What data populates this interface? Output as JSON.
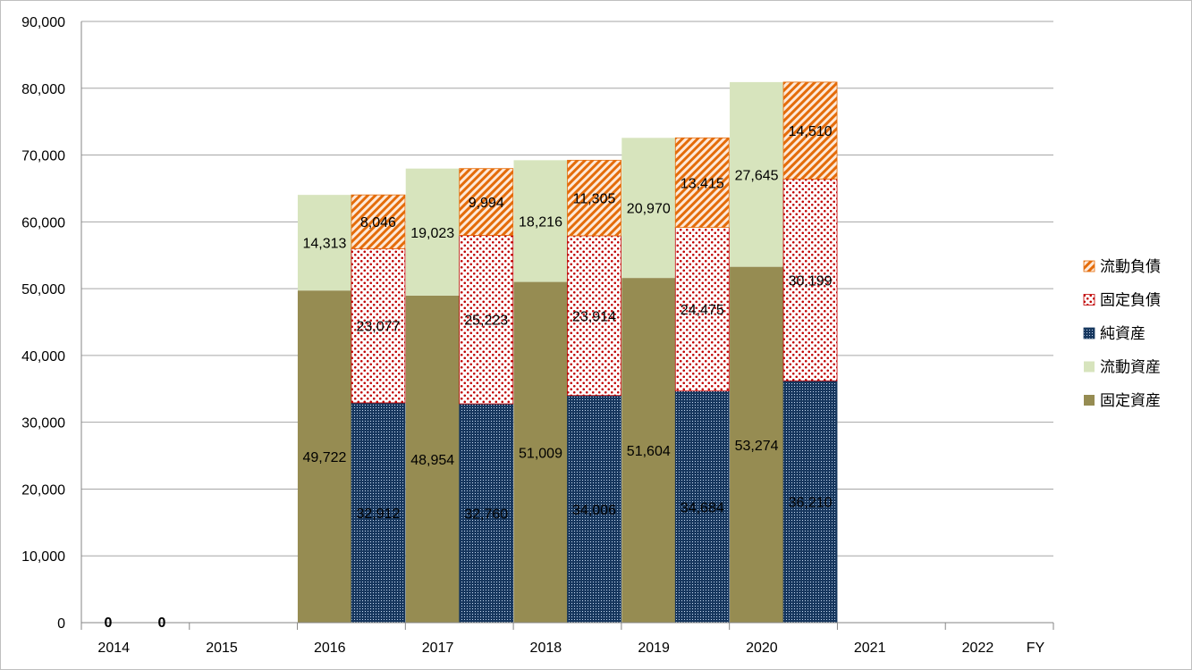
{
  "chart_data": {
    "type": "bar",
    "stacked": true,
    "grouped_pairs": true,
    "x_axis_label": "FY",
    "x_tick_labels": [
      "2014",
      "2015",
      "2016",
      "2017",
      "2018",
      "2019",
      "2020",
      "2021",
      "2022"
    ],
    "ylim": [
      0,
      90000
    ],
    "y_ticks": [
      "0",
      "10,000",
      "20,000",
      "30,000",
      "40,000",
      "50,000",
      "60,000",
      "70,000",
      "80,000",
      "90,000"
    ],
    "grid": true,
    "legend_position": "right",
    "zero_labels": [
      "0",
      "0"
    ],
    "years": [
      2016,
      2017,
      2018,
      2019,
      2020
    ],
    "assets_stack": [
      {
        "name": "固定資産",
        "color": "#968c52",
        "values": [
          49722,
          48954,
          51009,
          51604,
          53274
        ],
        "labels": [
          "49,722",
          "48,954",
          "51,009",
          "51,604",
          "53,274"
        ]
      },
      {
        "name": "流動資産",
        "color": "#d7e4bd",
        "values": [
          14313,
          19023,
          18216,
          20970,
          27645
        ],
        "labels": [
          "14,313",
          "19,023",
          "18,216",
          "20,970",
          "27,645"
        ]
      }
    ],
    "liabilities_stack": [
      {
        "name": "純資産",
        "color": "#17375e",
        "values": [
          32912,
          32760,
          34006,
          34684,
          36210
        ],
        "labels": [
          "32,912",
          "32,760",
          "34,006",
          "34,684",
          "36,210"
        ]
      },
      {
        "name": "固定負債",
        "color": "#c00000",
        "values": [
          23077,
          25223,
          23914,
          24475,
          30199
        ],
        "labels": [
          "23,077",
          "25,223",
          "23,914",
          "24,475",
          "30,199"
        ]
      },
      {
        "name": "流動負債",
        "color": "#e46c0a",
        "values": [
          8046,
          9994,
          11305,
          13415,
          14510
        ],
        "labels": [
          "8,046",
          "9,994",
          "11,305",
          "13,415",
          "14,510"
        ]
      }
    ],
    "legend": [
      "流動負債",
      "固定負債",
      "純資産",
      "流動資産",
      "固定資産"
    ]
  }
}
